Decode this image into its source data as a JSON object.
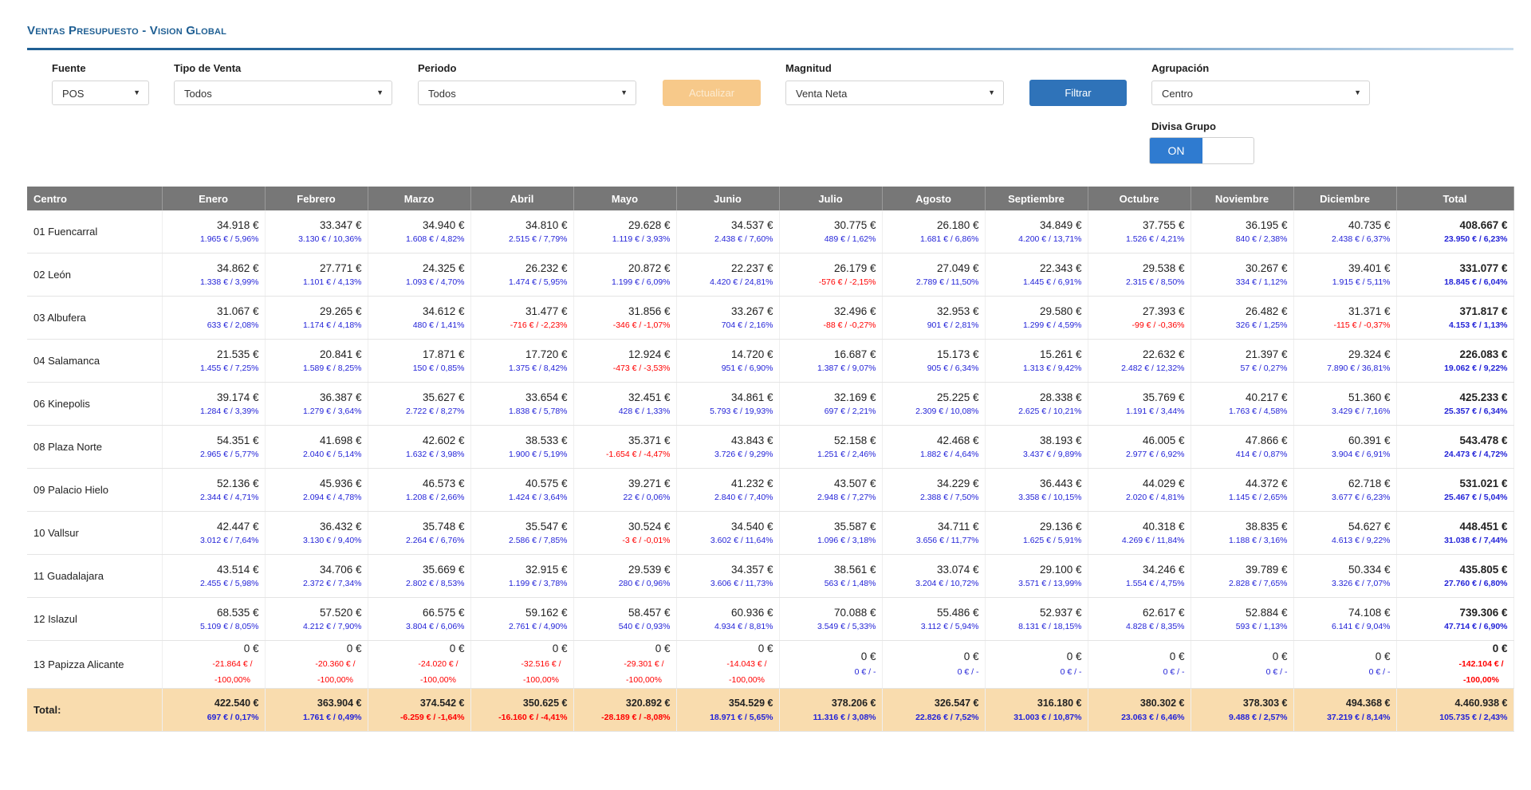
{
  "page": {
    "title": "Ventas Presupuesto - Vision Global"
  },
  "filters": {
    "fuente": {
      "label": "Fuente",
      "value": "POS"
    },
    "tipo_venta": {
      "label": "Tipo de Venta",
      "value": "Todos"
    },
    "periodo": {
      "label": "Periodo",
      "value": "Todos"
    },
    "actualizar_label": "Actualizar",
    "magnitud": {
      "label": "Magnitud",
      "value": "Venta Neta"
    },
    "filtrar_label": "Filtrar",
    "agrupacion": {
      "label": "Agrupación",
      "value": "Centro"
    },
    "divisa": {
      "label": "Divisa Grupo",
      "toggle_on": "ON"
    }
  },
  "colors": {
    "accent": "#2f73b9",
    "header_bg": "#777777",
    "total_bg": "#f9dcae",
    "positive": "#2424d8",
    "negative": "#ff0000"
  },
  "table": {
    "columns": [
      "Centro",
      "Enero",
      "Febrero",
      "Marzo",
      "Abril",
      "Mayo",
      "Junio",
      "Julio",
      "Agosto",
      "Septiembre",
      "Octubre",
      "Noviembre",
      "Diciembre",
      "Total"
    ],
    "rows": [
      {
        "name": "01 Fuencarral",
        "cells": [
          {
            "v": "34.918 €",
            "d": "1.965 € / 5,96%",
            "neg": false
          },
          {
            "v": "33.347 €",
            "d": "3.130 € / 10,36%",
            "neg": false
          },
          {
            "v": "34.940 €",
            "d": "1.608 € / 4,82%",
            "neg": false
          },
          {
            "v": "34.810 €",
            "d": "2.515 € / 7,79%",
            "neg": false
          },
          {
            "v": "29.628 €",
            "d": "1.119 € / 3,93%",
            "neg": false
          },
          {
            "v": "34.537 €",
            "d": "2.438 € / 7,60%",
            "neg": false
          },
          {
            "v": "30.775 €",
            "d": "489 € / 1,62%",
            "neg": false
          },
          {
            "v": "26.180 €",
            "d": "1.681 € / 6,86%",
            "neg": false
          },
          {
            "v": "34.849 €",
            "d": "4.200 € / 13,71%",
            "neg": false
          },
          {
            "v": "37.755 €",
            "d": "1.526 € / 4,21%",
            "neg": false
          },
          {
            "v": "36.195 €",
            "d": "840 € / 2,38%",
            "neg": false
          },
          {
            "v": "40.735 €",
            "d": "2.438 € / 6,37%",
            "neg": false
          },
          {
            "v": "408.667 €",
            "d": "23.950 € / 6,23%",
            "neg": false
          }
        ]
      },
      {
        "name": "02 León",
        "cells": [
          {
            "v": "34.862 €",
            "d": "1.338 € / 3,99%",
            "neg": false
          },
          {
            "v": "27.771 €",
            "d": "1.101 € / 4,13%",
            "neg": false
          },
          {
            "v": "24.325 €",
            "d": "1.093 € / 4,70%",
            "neg": false
          },
          {
            "v": "26.232 €",
            "d": "1.474 € / 5,95%",
            "neg": false
          },
          {
            "v": "20.872 €",
            "d": "1.199 € / 6,09%",
            "neg": false
          },
          {
            "v": "22.237 €",
            "d": "4.420 € / 24,81%",
            "neg": false
          },
          {
            "v": "26.179 €",
            "d": "-576 € / -2,15%",
            "neg": true
          },
          {
            "v": "27.049 €",
            "d": "2.789 € / 11,50%",
            "neg": false
          },
          {
            "v": "22.343 €",
            "d": "1.445 € / 6,91%",
            "neg": false
          },
          {
            "v": "29.538 €",
            "d": "2.315 € / 8,50%",
            "neg": false
          },
          {
            "v": "30.267 €",
            "d": "334 € / 1,12%",
            "neg": false
          },
          {
            "v": "39.401 €",
            "d": "1.915 € / 5,11%",
            "neg": false
          },
          {
            "v": "331.077 €",
            "d": "18.845 € / 6,04%",
            "neg": false
          }
        ]
      },
      {
        "name": "03 Albufera",
        "cells": [
          {
            "v": "31.067 €",
            "d": "633 € / 2,08%",
            "neg": false
          },
          {
            "v": "29.265 €",
            "d": "1.174 € / 4,18%",
            "neg": false
          },
          {
            "v": "34.612 €",
            "d": "480 € / 1,41%",
            "neg": false
          },
          {
            "v": "31.477 €",
            "d": "-716 € / -2,23%",
            "neg": true
          },
          {
            "v": "31.856 €",
            "d": "-346 € / -1,07%",
            "neg": true
          },
          {
            "v": "33.267 €",
            "d": "704 € / 2,16%",
            "neg": false
          },
          {
            "v": "32.496 €",
            "d": "-88 € / -0,27%",
            "neg": true
          },
          {
            "v": "32.953 €",
            "d": "901 € / 2,81%",
            "neg": false
          },
          {
            "v": "29.580 €",
            "d": "1.299 € / 4,59%",
            "neg": false
          },
          {
            "v": "27.393 €",
            "d": "-99 € / -0,36%",
            "neg": true
          },
          {
            "v": "26.482 €",
            "d": "326 € / 1,25%",
            "neg": false
          },
          {
            "v": "31.371 €",
            "d": "-115 € / -0,37%",
            "neg": true
          },
          {
            "v": "371.817 €",
            "d": "4.153 € / 1,13%",
            "neg": false
          }
        ]
      },
      {
        "name": "04 Salamanca",
        "cells": [
          {
            "v": "21.535 €",
            "d": "1.455 € / 7,25%",
            "neg": false
          },
          {
            "v": "20.841 €",
            "d": "1.589 € / 8,25%",
            "neg": false
          },
          {
            "v": "17.871 €",
            "d": "150 € / 0,85%",
            "neg": false
          },
          {
            "v": "17.720 €",
            "d": "1.375 € / 8,42%",
            "neg": false
          },
          {
            "v": "12.924 €",
            "d": "-473 € / -3,53%",
            "neg": true
          },
          {
            "v": "14.720 €",
            "d": "951 € / 6,90%",
            "neg": false
          },
          {
            "v": "16.687 €",
            "d": "1.387 € / 9,07%",
            "neg": false
          },
          {
            "v": "15.173 €",
            "d": "905 € / 6,34%",
            "neg": false
          },
          {
            "v": "15.261 €",
            "d": "1.313 € / 9,42%",
            "neg": false
          },
          {
            "v": "22.632 €",
            "d": "2.482 € / 12,32%",
            "neg": false
          },
          {
            "v": "21.397 €",
            "d": "57 € / 0,27%",
            "neg": false
          },
          {
            "v": "29.324 €",
            "d": "7.890 € / 36,81%",
            "neg": false
          },
          {
            "v": "226.083 €",
            "d": "19.062 € / 9,22%",
            "neg": false
          }
        ]
      },
      {
        "name": "06 Kinepolis",
        "cells": [
          {
            "v": "39.174 €",
            "d": "1.284 € / 3,39%",
            "neg": false
          },
          {
            "v": "36.387 €",
            "d": "1.279 € / 3,64%",
            "neg": false
          },
          {
            "v": "35.627 €",
            "d": "2.722 € / 8,27%",
            "neg": false
          },
          {
            "v": "33.654 €",
            "d": "1.838 € / 5,78%",
            "neg": false
          },
          {
            "v": "32.451 €",
            "d": "428 € / 1,33%",
            "neg": false
          },
          {
            "v": "34.861 €",
            "d": "5.793 € / 19,93%",
            "neg": false
          },
          {
            "v": "32.169 €",
            "d": "697 € / 2,21%",
            "neg": false
          },
          {
            "v": "25.225 €",
            "d": "2.309 € / 10,08%",
            "neg": false
          },
          {
            "v": "28.338 €",
            "d": "2.625 € / 10,21%",
            "neg": false
          },
          {
            "v": "35.769 €",
            "d": "1.191 € / 3,44%",
            "neg": false
          },
          {
            "v": "40.217 €",
            "d": "1.763 € / 4,58%",
            "neg": false
          },
          {
            "v": "51.360 €",
            "d": "3.429 € / 7,16%",
            "neg": false
          },
          {
            "v": "425.233 €",
            "d": "25.357 € / 6,34%",
            "neg": false
          }
        ]
      },
      {
        "name": "08 Plaza Norte",
        "cells": [
          {
            "v": "54.351 €",
            "d": "2.965 € / 5,77%",
            "neg": false
          },
          {
            "v": "41.698 €",
            "d": "2.040 € / 5,14%",
            "neg": false
          },
          {
            "v": "42.602 €",
            "d": "1.632 € / 3,98%",
            "neg": false
          },
          {
            "v": "38.533 €",
            "d": "1.900 € / 5,19%",
            "neg": false
          },
          {
            "v": "35.371 €",
            "d": "-1.654 € / -4,47%",
            "neg": true
          },
          {
            "v": "43.843 €",
            "d": "3.726 € / 9,29%",
            "neg": false
          },
          {
            "v": "52.158 €",
            "d": "1.251 € / 2,46%",
            "neg": false
          },
          {
            "v": "42.468 €",
            "d": "1.882 € / 4,64%",
            "neg": false
          },
          {
            "v": "38.193 €",
            "d": "3.437 € / 9,89%",
            "neg": false
          },
          {
            "v": "46.005 €",
            "d": "2.977 € / 6,92%",
            "neg": false
          },
          {
            "v": "47.866 €",
            "d": "414 € / 0,87%",
            "neg": false
          },
          {
            "v": "60.391 €",
            "d": "3.904 € / 6,91%",
            "neg": false
          },
          {
            "v": "543.478 €",
            "d": "24.473 € / 4,72%",
            "neg": false
          }
        ]
      },
      {
        "name": "09 Palacio Hielo",
        "cells": [
          {
            "v": "52.136 €",
            "d": "2.344 € / 4,71%",
            "neg": false
          },
          {
            "v": "45.936 €",
            "d": "2.094 € / 4,78%",
            "neg": false
          },
          {
            "v": "46.573 €",
            "d": "1.208 € / 2,66%",
            "neg": false
          },
          {
            "v": "40.575 €",
            "d": "1.424 € / 3,64%",
            "neg": false
          },
          {
            "v": "39.271 €",
            "d": "22 € / 0,06%",
            "neg": false
          },
          {
            "v": "41.232 €",
            "d": "2.840 € / 7,40%",
            "neg": false
          },
          {
            "v": "43.507 €",
            "d": "2.948 € / 7,27%",
            "neg": false
          },
          {
            "v": "34.229 €",
            "d": "2.388 € / 7,50%",
            "neg": false
          },
          {
            "v": "36.443 €",
            "d": "3.358 € / 10,15%",
            "neg": false
          },
          {
            "v": "44.029 €",
            "d": "2.020 € / 4,81%",
            "neg": false
          },
          {
            "v": "44.372 €",
            "d": "1.145 € / 2,65%",
            "neg": false
          },
          {
            "v": "62.718 €",
            "d": "3.677 € / 6,23%",
            "neg": false
          },
          {
            "v": "531.021 €",
            "d": "25.467 € / 5,04%",
            "neg": false
          }
        ]
      },
      {
        "name": "10 Vallsur",
        "cells": [
          {
            "v": "42.447 €",
            "d": "3.012 € / 7,64%",
            "neg": false
          },
          {
            "v": "36.432 €",
            "d": "3.130 € / 9,40%",
            "neg": false
          },
          {
            "v": "35.748 €",
            "d": "2.264 € / 6,76%",
            "neg": false
          },
          {
            "v": "35.547 €",
            "d": "2.586 € / 7,85%",
            "neg": false
          },
          {
            "v": "30.524 €",
            "d": "-3 € / -0,01%",
            "neg": true
          },
          {
            "v": "34.540 €",
            "d": "3.602 € / 11,64%",
            "neg": false
          },
          {
            "v": "35.587 €",
            "d": "1.096 € / 3,18%",
            "neg": false
          },
          {
            "v": "34.711 €",
            "d": "3.656 € / 11,77%",
            "neg": false
          },
          {
            "v": "29.136 €",
            "d": "1.625 € / 5,91%",
            "neg": false
          },
          {
            "v": "40.318 €",
            "d": "4.269 € / 11,84%",
            "neg": false
          },
          {
            "v": "38.835 €",
            "d": "1.188 € / 3,16%",
            "neg": false
          },
          {
            "v": "54.627 €",
            "d": "4.613 € / 9,22%",
            "neg": false
          },
          {
            "v": "448.451 €",
            "d": "31.038 € / 7,44%",
            "neg": false
          }
        ]
      },
      {
        "name": "11 Guadalajara",
        "cells": [
          {
            "v": "43.514 €",
            "d": "2.455 € / 5,98%",
            "neg": false
          },
          {
            "v": "34.706 €",
            "d": "2.372 € / 7,34%",
            "neg": false
          },
          {
            "v": "35.669 €",
            "d": "2.802 € / 8,53%",
            "neg": false
          },
          {
            "v": "32.915 €",
            "d": "1.199 € / 3,78%",
            "neg": false
          },
          {
            "v": "29.539 €",
            "d": "280 € / 0,96%",
            "neg": false
          },
          {
            "v": "34.357 €",
            "d": "3.606 € / 11,73%",
            "neg": false
          },
          {
            "v": "38.561 €",
            "d": "563 € / 1,48%",
            "neg": false
          },
          {
            "v": "33.074 €",
            "d": "3.204 € / 10,72%",
            "neg": false
          },
          {
            "v": "29.100 €",
            "d": "3.571 € / 13,99%",
            "neg": false
          },
          {
            "v": "34.246 €",
            "d": "1.554 € / 4,75%",
            "neg": false
          },
          {
            "v": "39.789 €",
            "d": "2.828 € / 7,65%",
            "neg": false
          },
          {
            "v": "50.334 €",
            "d": "3.326 € / 7,07%",
            "neg": false
          },
          {
            "v": "435.805 €",
            "d": "27.760 € / 6,80%",
            "neg": false
          }
        ]
      },
      {
        "name": "12 Islazul",
        "cells": [
          {
            "v": "68.535 €",
            "d": "5.109 € / 8,05%",
            "neg": false
          },
          {
            "v": "57.520 €",
            "d": "4.212 € / 7,90%",
            "neg": false
          },
          {
            "v": "66.575 €",
            "d": "3.804 € / 6,06%",
            "neg": false
          },
          {
            "v": "59.162 €",
            "d": "2.761 € / 4,90%",
            "neg": false
          },
          {
            "v": "58.457 €",
            "d": "540 € / 0,93%",
            "neg": false
          },
          {
            "v": "60.936 €",
            "d": "4.934 € / 8,81%",
            "neg": false
          },
          {
            "v": "70.088 €",
            "d": "3.549 € / 5,33%",
            "neg": false
          },
          {
            "v": "55.486 €",
            "d": "3.112 € / 5,94%",
            "neg": false
          },
          {
            "v": "52.937 €",
            "d": "8.131 € / 18,15%",
            "neg": false
          },
          {
            "v": "62.617 €",
            "d": "4.828 € / 8,35%",
            "neg": false
          },
          {
            "v": "52.884 €",
            "d": "593 € / 1,13%",
            "neg": false
          },
          {
            "v": "74.108 €",
            "d": "6.141 € / 9,04%",
            "neg": false
          },
          {
            "v": "739.306 €",
            "d": "47.714 € / 6,90%",
            "neg": false
          }
        ]
      },
      {
        "name": "13 Papizza Alicante",
        "zero": true,
        "cells": [
          {
            "v": "0 €",
            "d": "-21.864 € / -100,00%",
            "neg": true
          },
          {
            "v": "0 €",
            "d": "-20.360 € / -100,00%",
            "neg": true
          },
          {
            "v": "0 €",
            "d": "-24.020 € / -100,00%",
            "neg": true
          },
          {
            "v": "0 €",
            "d": "-32.516 € / -100,00%",
            "neg": true
          },
          {
            "v": "0 €",
            "d": "-29.301 € / -100,00%",
            "neg": true
          },
          {
            "v": "0 €",
            "d": "-14.043 € / -100,00%",
            "neg": true
          },
          {
            "v": "0 €",
            "d": "0 € / -",
            "neg": false
          },
          {
            "v": "0 €",
            "d": "0 € / -",
            "neg": false
          },
          {
            "v": "0 €",
            "d": "0 € / -",
            "neg": false
          },
          {
            "v": "0 €",
            "d": "0 € / -",
            "neg": false
          },
          {
            "v": "0 €",
            "d": "0 € / -",
            "neg": false
          },
          {
            "v": "0 €",
            "d": "0 € / -",
            "neg": false
          },
          {
            "v": "0 €",
            "d": "-142.104 € / -100,00%",
            "neg": true
          }
        ]
      }
    ],
    "total": {
      "name": "Total:",
      "cells": [
        {
          "v": "422.540 €",
          "d": "697 € / 0,17%",
          "neg": false
        },
        {
          "v": "363.904 €",
          "d": "1.761 € / 0,49%",
          "neg": false
        },
        {
          "v": "374.542 €",
          "d": "-6.259 € / -1,64%",
          "neg": true
        },
        {
          "v": "350.625 €",
          "d": "-16.160 € / -4,41%",
          "neg": true
        },
        {
          "v": "320.892 €",
          "d": "-28.189 € / -8,08%",
          "neg": true
        },
        {
          "v": "354.529 €",
          "d": "18.971 € / 5,65%",
          "neg": false
        },
        {
          "v": "378.206 €",
          "d": "11.316 € / 3,08%",
          "neg": false
        },
        {
          "v": "326.547 €",
          "d": "22.826 € / 7,52%",
          "neg": false
        },
        {
          "v": "316.180 €",
          "d": "31.003 € / 10,87%",
          "neg": false
        },
        {
          "v": "380.302 €",
          "d": "23.063 € / 6,46%",
          "neg": false
        },
        {
          "v": "378.303 €",
          "d": "9.488 € / 2,57%",
          "neg": false
        },
        {
          "v": "494.368 €",
          "d": "37.219 € / 8,14%",
          "neg": false
        },
        {
          "v": "4.460.938 €",
          "d": "105.735 € / 2,43%",
          "neg": false
        }
      ]
    }
  }
}
